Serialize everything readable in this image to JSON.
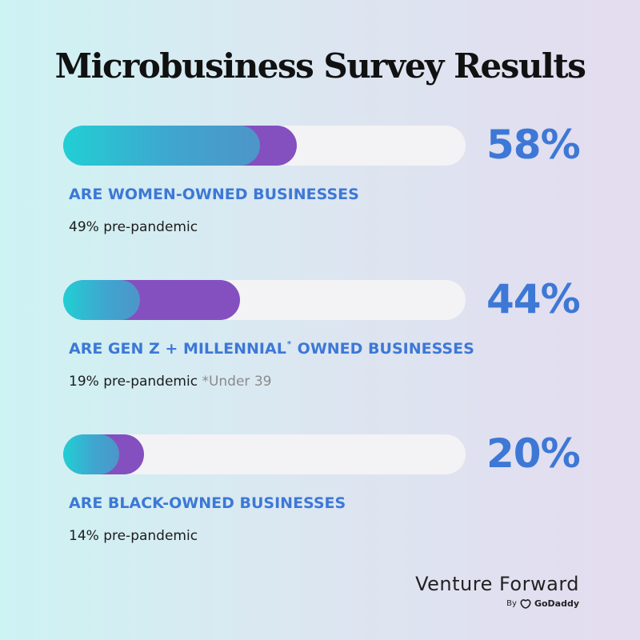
{
  "title": "Microbusiness Survey Results",
  "colors": {
    "bar_current": "#8450bf",
    "bar_prepandemic_start": "#21cfd4",
    "bar_prepandemic_end": "#4d95c8",
    "bar_track": "#f3f3f5",
    "percent_text": "#3d78d6"
  },
  "chart_data": {
    "type": "bar",
    "orientation": "horizontal",
    "xlim": [
      0,
      100
    ],
    "categories": [
      "ARE WOMEN-OWNED BUSINESSES",
      "ARE GEN Z + MILLENNIAL OWNED BUSINESSES",
      "ARE BLACK-OWNED BUSINESSES"
    ],
    "series": [
      {
        "values": [
          58,
          44,
          20
        ]
      },
      {
        "values": [
          49,
          19,
          14
        ]
      }
    ],
    "bars": [
      {
        "value": 58,
        "prev": 49,
        "percent_label": "58%",
        "label_before": "ARE WOMEN-OWNED BUSINESSES",
        "label_sup": "",
        "label_after": "",
        "sub": "49% pre-pandemic",
        "note": ""
      },
      {
        "value": 44,
        "prev": 19,
        "percent_label": "44%",
        "label_before": "ARE GEN Z + MILLENNIAL",
        "label_sup": "*",
        "label_after": " OWNED BUSINESSES",
        "sub": "19% pre-pandemic",
        "note": "*Under 39"
      },
      {
        "value": 20,
        "prev": 14,
        "percent_label": "20%",
        "label_before": "ARE BLACK-OWNED BUSINESSES",
        "label_sup": "",
        "label_after": "",
        "sub": "14% pre-pandemic",
        "note": ""
      }
    ]
  },
  "brand": {
    "name": "Venture Forward",
    "by": "By",
    "company": "GoDaddy"
  }
}
